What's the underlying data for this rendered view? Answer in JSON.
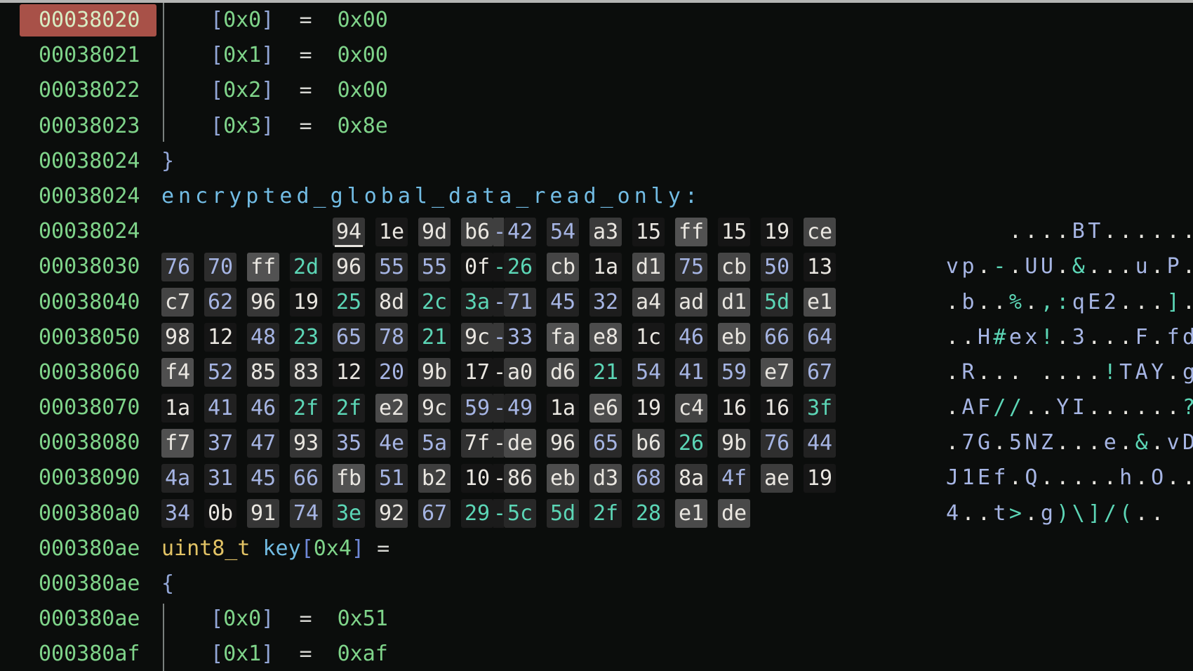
{
  "palette": {
    "bg": "#0b0d0c",
    "addr": "#7fd48a",
    "addrSelBg": "#a85148",
    "addrSelFg": "#d8ecc3",
    "brace": "#93a7d8",
    "label": "#72bce4",
    "keyword": "#e2c365",
    "name": "#72bce4",
    "bracket": "#93a7d8",
    "declBracket": "#6f88d8",
    "eq": "#d6d6d2",
    "val": "#7fd48a",
    "hexAlnum": "#a6b5e4",
    "hexPunct": "#5cd6b6",
    "hexOther": "#eae7e1",
    "guide": "#7a807e",
    "cursor": "#e8e5df"
  },
  "tokens": {
    "open_brace": "{",
    "close_brace": "}",
    "open_bracket": "[",
    "close_bracket": "]",
    "equals": "=",
    "byte_group_separator": "-"
  },
  "lines": [
    {
      "t": "item",
      "addr": "00038020",
      "sel": true,
      "idx": "0x0",
      "val": "0x00"
    },
    {
      "t": "item",
      "addr": "00038021",
      "idx": "0x1",
      "val": "0x00"
    },
    {
      "t": "item",
      "addr": "00038022",
      "idx": "0x2",
      "val": "0x00"
    },
    {
      "t": "item",
      "addr": "00038023",
      "idx": "0x3",
      "val": "0x8e"
    },
    {
      "t": "brace",
      "addr": "00038024",
      "text": "}"
    },
    {
      "t": "label",
      "addr": "00038024",
      "text": "encrypted_global_data_read_only:"
    },
    {
      "t": "hex",
      "addr": "00038024",
      "pad": 4,
      "cursor": 0,
      "bytes": [
        "94",
        "1e",
        "9d",
        "b6",
        "42",
        "54",
        "a3",
        "15",
        "ff",
        "15",
        "19",
        "ce"
      ],
      "ascii": "    ....BT......"
    },
    {
      "t": "hex",
      "addr": "00038030",
      "pad": 0,
      "bytes": [
        "76",
        "70",
        "ff",
        "2d",
        "96",
        "55",
        "55",
        "0f",
        "26",
        "cb",
        "1a",
        "d1",
        "75",
        "cb",
        "50",
        "13"
      ],
      "ascii": "vp.-.UU.&...u.P."
    },
    {
      "t": "hex",
      "addr": "00038040",
      "pad": 0,
      "bytes": [
        "c7",
        "62",
        "96",
        "19",
        "25",
        "8d",
        "2c",
        "3a",
        "71",
        "45",
        "32",
        "a4",
        "ad",
        "d1",
        "5d",
        "e1"
      ],
      "ascii": ".b..%.,:qE2...]."
    },
    {
      "t": "hex",
      "addr": "00038050",
      "pad": 0,
      "bytes": [
        "98",
        "12",
        "48",
        "23",
        "65",
        "78",
        "21",
        "9c",
        "33",
        "fa",
        "e8",
        "1c",
        "46",
        "eb",
        "66",
        "64"
      ],
      "ascii": "..H#ex!.3...F.fd"
    },
    {
      "t": "hex",
      "addr": "00038060",
      "pad": 0,
      "bytes": [
        "f4",
        "52",
        "85",
        "83",
        "12",
        "20",
        "9b",
        "17",
        "a0",
        "d6",
        "21",
        "54",
        "41",
        "59",
        "e7",
        "67"
      ],
      "ascii": ".R... ....!TAY.g"
    },
    {
      "t": "hex",
      "addr": "00038070",
      "pad": 0,
      "bytes": [
        "1a",
        "41",
        "46",
        "2f",
        "2f",
        "e2",
        "9c",
        "59",
        "49",
        "1a",
        "e6",
        "19",
        "c4",
        "16",
        "16",
        "3f"
      ],
      "ascii": ".AF//..YI......?"
    },
    {
      "t": "hex",
      "addr": "00038080",
      "pad": 0,
      "bytes": [
        "f7",
        "37",
        "47",
        "93",
        "35",
        "4e",
        "5a",
        "7f",
        "de",
        "96",
        "65",
        "b6",
        "26",
        "9b",
        "76",
        "44"
      ],
      "ascii": ".7G.5NZ...e.&.vD"
    },
    {
      "t": "hex",
      "addr": "00038090",
      "pad": 0,
      "bytes": [
        "4a",
        "31",
        "45",
        "66",
        "fb",
        "51",
        "b2",
        "10",
        "86",
        "eb",
        "d3",
        "68",
        "8a",
        "4f",
        "ae",
        "19"
      ],
      "ascii": "J1Ef.Q.....h.O.."
    },
    {
      "t": "hex",
      "addr": "000380a0",
      "pad": 0,
      "bytes": [
        "34",
        "0b",
        "91",
        "74",
        "3e",
        "92",
        "67",
        "29",
        "5c",
        "5d",
        "2f",
        "28",
        "e1",
        "de"
      ],
      "ascii": "4..t>.g)\\]/(.."
    },
    {
      "t": "decl",
      "addr": "000380ae",
      "keyword": "uint8_t",
      "name": "key",
      "idx": "0x4",
      "equals": "="
    },
    {
      "t": "brace",
      "addr": "000380ae",
      "text": "{"
    },
    {
      "t": "item",
      "addr": "000380ae",
      "idx": "0x0",
      "val": "0x51"
    },
    {
      "t": "item",
      "addr": "000380af",
      "idx": "0x1",
      "val": "0xaf"
    }
  ]
}
